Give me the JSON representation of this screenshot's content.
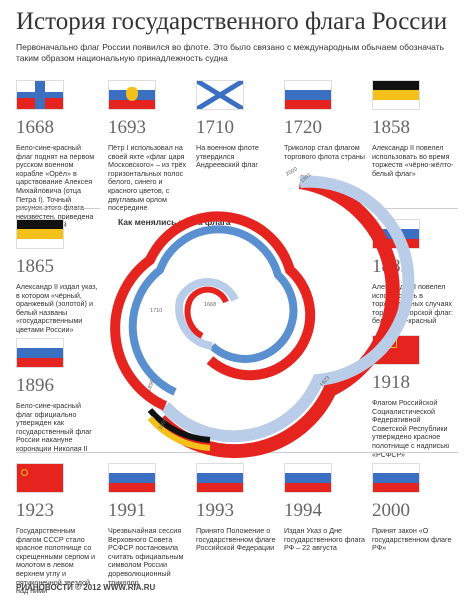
{
  "title": "История государственного флага России",
  "subtitle": "Первоначально флаг России появился во флоте. Это было связано с международным обычаем обозначать таким образом национальную принадлежность судна",
  "spiral_title": "Как менялись цвета флага",
  "footer": "© 2012 WWW.RIA.RU",
  "footer_logo": "РИАНОВОСТИ",
  "entries": [
    {
      "year": "1668",
      "desc": "Бело-сине-красный флаг поднят на первом русском военном корабле «Орёл» в царствование Алексея Михайловича (отца Петра I). Точный рисунок этого флага неизвестен, приведена одна из версий"
    },
    {
      "year": "1693",
      "desc": "Пётр I использовал на своей яхте «флаг царя Московского» – из трёх горизонтальных полос белого, синего и красного цветов, с двуглавым орлом посередине"
    },
    {
      "year": "1710",
      "desc": "На военном флоте утвердился Андреевский флаг"
    },
    {
      "year": "1720",
      "desc": "Триколор стал флагом торгового флота страны"
    },
    {
      "year": "1858",
      "desc": "Александр II повелел использовать во время торжеств «чёрно-жёлто-белый флаг»"
    },
    {
      "year": "1865",
      "desc": "Александр II издал указ, в котором «чёрный, оранжевый (золотой) и белый названы «государственными цветами России»"
    },
    {
      "year": "1883",
      "desc": "Александр III повелел использовать в торжественных случаях торговый морской флаг: бело-сине-красный"
    },
    {
      "year": "1896",
      "desc": "Бело-сине-красный флаг официально утвержден как государственный флаг России накануне коронации Николая II"
    },
    {
      "year": "1918",
      "desc": "Флагом Российской Социалистической Федеративной Советской Республики утверждено красное полотнище с надписью «РСФСР»"
    },
    {
      "year": "1923",
      "desc": "Государственным флагом СССР стало красное полотнище со скрещенными серпом и молотом в левом верхнем углу и пятиконечной звездой над ними"
    },
    {
      "year": "1991",
      "desc": "Чрезвычайная сессия Верховного Совета РСФСР постановила считать официальным символом России дореволюционный триколор"
    },
    {
      "year": "1993",
      "desc": "Принято Положение о государственном флаге Российской Федерации"
    },
    {
      "year": "1994",
      "desc": "Издан Указ о Дне государственного флага РФ – 22 августа"
    },
    {
      "year": "2000",
      "desc": "Принят закон «О государственном флаге РФ»"
    }
  ],
  "flag_1918_text": "РСФСР",
  "spiral_years": [
    "1668",
    "1693",
    "1710",
    "1720",
    "1858",
    "1865",
    "1883",
    "1896",
    "1918",
    "1923",
    "1991",
    "1993",
    "1994",
    "2000"
  ],
  "colors": {
    "white": "#ffffff",
    "blue": "#5a90d0",
    "red": "#e52420",
    "black": "#111111",
    "gold": "#f3c11a",
    "lightblue": "#b9cde8",
    "grey": "#bbbbbb"
  }
}
